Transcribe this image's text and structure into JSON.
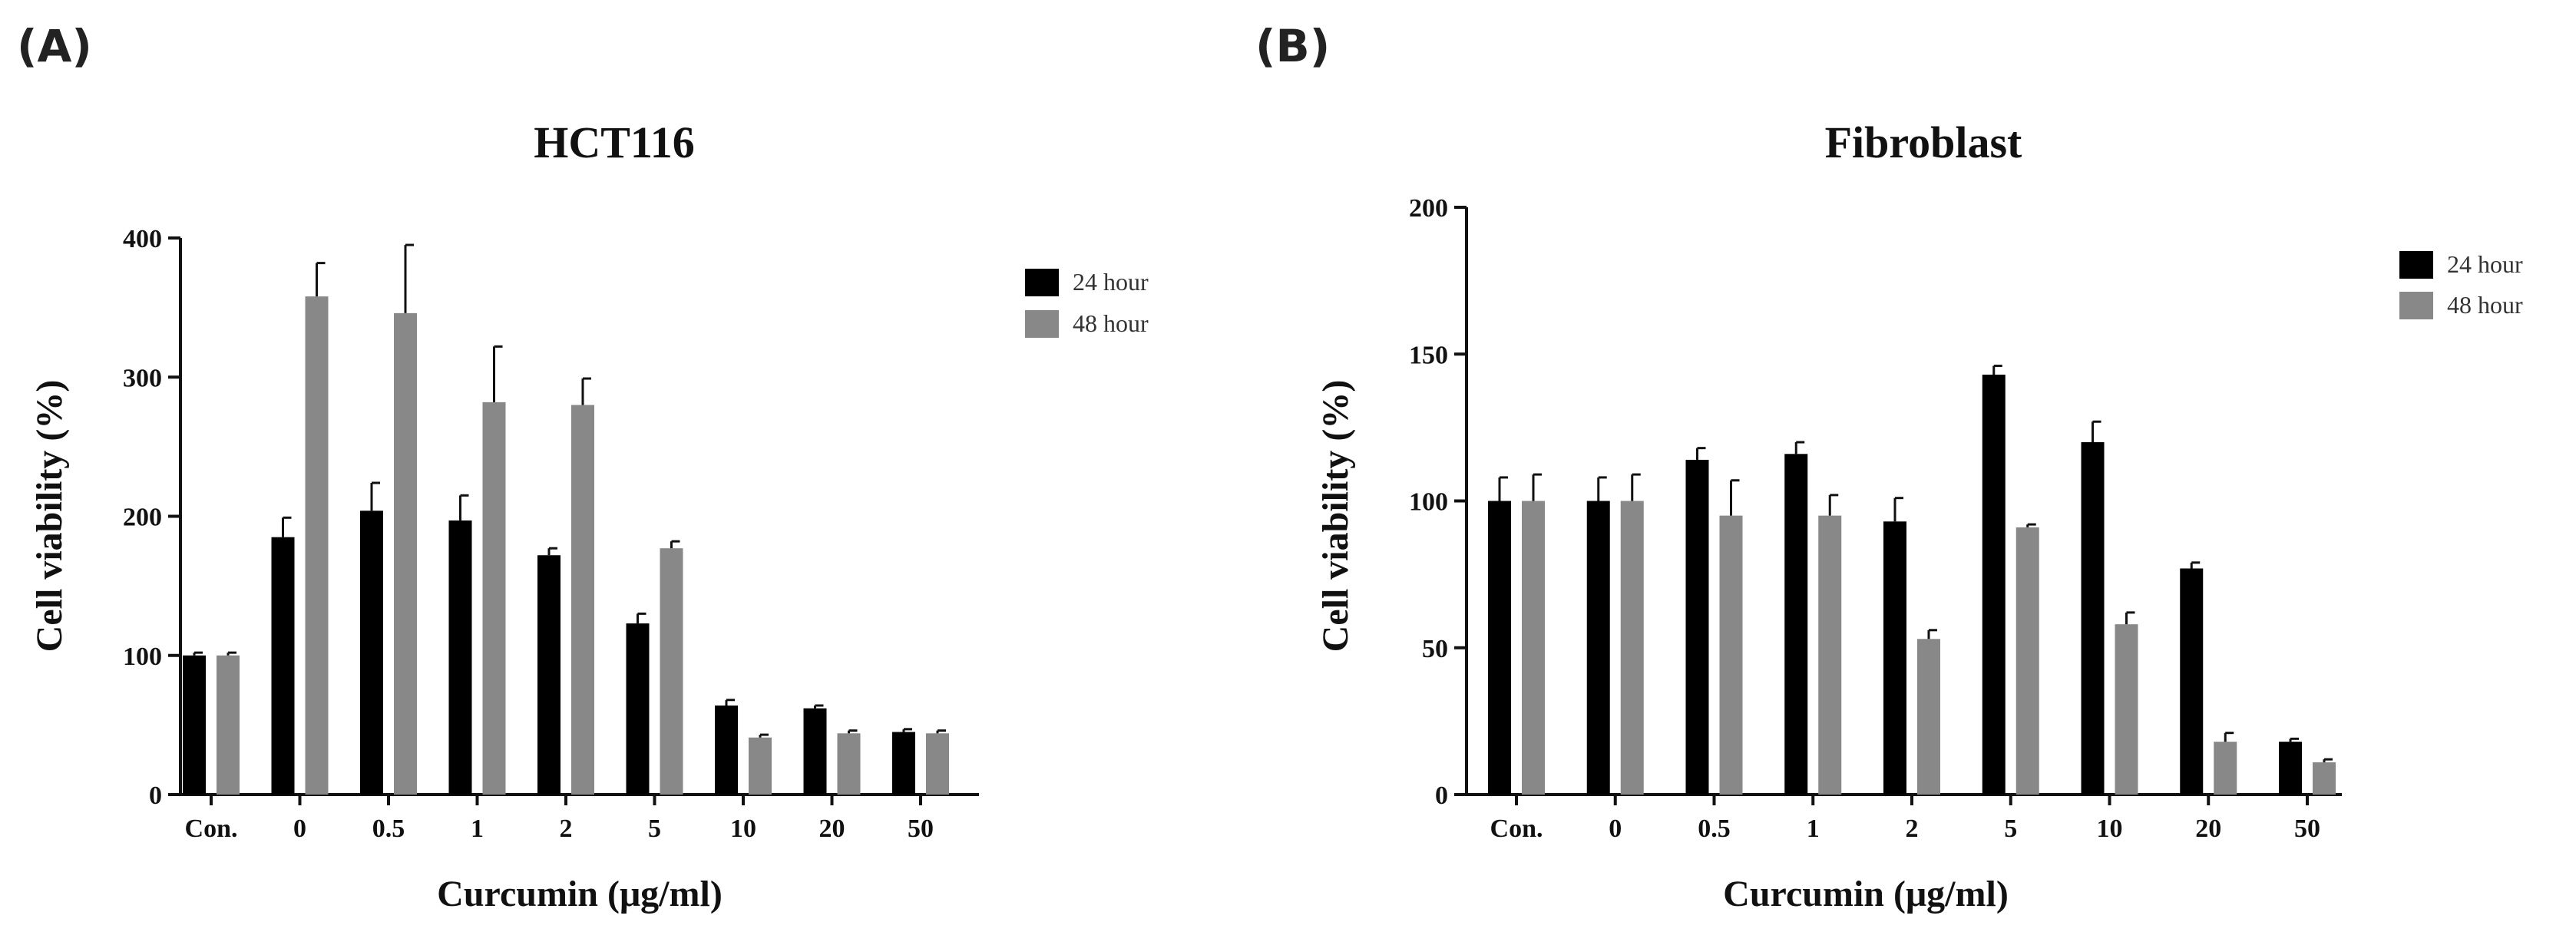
{
  "panels": [
    {
      "label": "(A)"
    },
    {
      "label": "(B)"
    }
  ],
  "chart_data": [
    {
      "type": "bar",
      "title": "HCT116",
      "xlabel": "Curcumin  (μg/ml)",
      "ylabel": "Cell viability  (%)",
      "ylim": [
        0,
        400
      ],
      "yticks": [
        0,
        100,
        200,
        300,
        400
      ],
      "categories": [
        "Con.",
        "0",
        "0.5",
        "1",
        "2",
        "5",
        "10",
        "20",
        "50"
      ],
      "legend_position": "top-right",
      "series": [
        {
          "name": "24 hour",
          "color": "#000000",
          "values": [
            100,
            185,
            204,
            197,
            172,
            123,
            64,
            62,
            45
          ],
          "errors": [
            2,
            14,
            20,
            18,
            5,
            7,
            4,
            2,
            2
          ]
        },
        {
          "name": "48 hour",
          "color": "#888888",
          "values": [
            100,
            358,
            346,
            282,
            280,
            177,
            41,
            44,
            44
          ],
          "errors": [
            2,
            24,
            49,
            40,
            19,
            5,
            2,
            2,
            2
          ]
        }
      ]
    },
    {
      "type": "bar",
      "title": "Fibroblast",
      "xlabel": "Curcumin  (μg/ml)",
      "ylabel": "Cell viability  (%)",
      "ylim": [
        0,
        200
      ],
      "yticks": [
        0,
        50,
        100,
        150,
        200
      ],
      "categories": [
        "Con.",
        "0",
        "0.5",
        "1",
        "2",
        "5",
        "10",
        "20",
        "50"
      ],
      "legend_position": "top-right",
      "series": [
        {
          "name": "24 hour",
          "color": "#000000",
          "values": [
            100,
            100,
            114,
            116,
            93,
            143,
            120,
            77,
            18
          ],
          "errors": [
            8,
            8,
            4,
            4,
            8,
            3,
            7,
            2,
            1
          ]
        },
        {
          "name": "48 hour",
          "color": "#888888",
          "values": [
            100,
            100,
            95,
            95,
            53,
            91,
            58,
            18,
            11
          ],
          "errors": [
            9,
            9,
            12,
            7,
            3,
            1,
            4,
            3,
            1
          ]
        }
      ]
    }
  ]
}
